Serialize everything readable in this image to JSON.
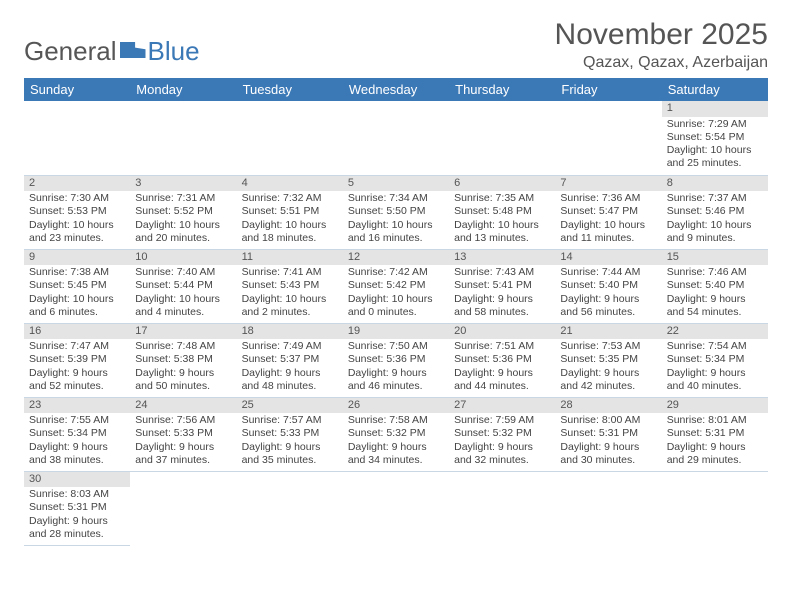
{
  "logo": {
    "part1": "General",
    "part2": "Blue"
  },
  "title": "November 2025",
  "location": "Qazax, Qazax, Azerbaijan",
  "headers": [
    "Sunday",
    "Monday",
    "Tuesday",
    "Wednesday",
    "Thursday",
    "Friday",
    "Saturday"
  ],
  "colors": {
    "header_bg": "#3b78b6",
    "daynum_bg": "#e4e4e4",
    "border": "#c9d6e4"
  },
  "weeks": [
    [
      null,
      null,
      null,
      null,
      null,
      null,
      {
        "n": "1",
        "sr": "Sunrise: 7:29 AM",
        "ss": "Sunset: 5:54 PM",
        "dl": "Daylight: 10 hours and 25 minutes."
      }
    ],
    [
      {
        "n": "2",
        "sr": "Sunrise: 7:30 AM",
        "ss": "Sunset: 5:53 PM",
        "dl": "Daylight: 10 hours and 23 minutes."
      },
      {
        "n": "3",
        "sr": "Sunrise: 7:31 AM",
        "ss": "Sunset: 5:52 PM",
        "dl": "Daylight: 10 hours and 20 minutes."
      },
      {
        "n": "4",
        "sr": "Sunrise: 7:32 AM",
        "ss": "Sunset: 5:51 PM",
        "dl": "Daylight: 10 hours and 18 minutes."
      },
      {
        "n": "5",
        "sr": "Sunrise: 7:34 AM",
        "ss": "Sunset: 5:50 PM",
        "dl": "Daylight: 10 hours and 16 minutes."
      },
      {
        "n": "6",
        "sr": "Sunrise: 7:35 AM",
        "ss": "Sunset: 5:48 PM",
        "dl": "Daylight: 10 hours and 13 minutes."
      },
      {
        "n": "7",
        "sr": "Sunrise: 7:36 AM",
        "ss": "Sunset: 5:47 PM",
        "dl": "Daylight: 10 hours and 11 minutes."
      },
      {
        "n": "8",
        "sr": "Sunrise: 7:37 AM",
        "ss": "Sunset: 5:46 PM",
        "dl": "Daylight: 10 hours and 9 minutes."
      }
    ],
    [
      {
        "n": "9",
        "sr": "Sunrise: 7:38 AM",
        "ss": "Sunset: 5:45 PM",
        "dl": "Daylight: 10 hours and 6 minutes."
      },
      {
        "n": "10",
        "sr": "Sunrise: 7:40 AM",
        "ss": "Sunset: 5:44 PM",
        "dl": "Daylight: 10 hours and 4 minutes."
      },
      {
        "n": "11",
        "sr": "Sunrise: 7:41 AM",
        "ss": "Sunset: 5:43 PM",
        "dl": "Daylight: 10 hours and 2 minutes."
      },
      {
        "n": "12",
        "sr": "Sunrise: 7:42 AM",
        "ss": "Sunset: 5:42 PM",
        "dl": "Daylight: 10 hours and 0 minutes."
      },
      {
        "n": "13",
        "sr": "Sunrise: 7:43 AM",
        "ss": "Sunset: 5:41 PM",
        "dl": "Daylight: 9 hours and 58 minutes."
      },
      {
        "n": "14",
        "sr": "Sunrise: 7:44 AM",
        "ss": "Sunset: 5:40 PM",
        "dl": "Daylight: 9 hours and 56 minutes."
      },
      {
        "n": "15",
        "sr": "Sunrise: 7:46 AM",
        "ss": "Sunset: 5:40 PM",
        "dl": "Daylight: 9 hours and 54 minutes."
      }
    ],
    [
      {
        "n": "16",
        "sr": "Sunrise: 7:47 AM",
        "ss": "Sunset: 5:39 PM",
        "dl": "Daylight: 9 hours and 52 minutes."
      },
      {
        "n": "17",
        "sr": "Sunrise: 7:48 AM",
        "ss": "Sunset: 5:38 PM",
        "dl": "Daylight: 9 hours and 50 minutes."
      },
      {
        "n": "18",
        "sr": "Sunrise: 7:49 AM",
        "ss": "Sunset: 5:37 PM",
        "dl": "Daylight: 9 hours and 48 minutes."
      },
      {
        "n": "19",
        "sr": "Sunrise: 7:50 AM",
        "ss": "Sunset: 5:36 PM",
        "dl": "Daylight: 9 hours and 46 minutes."
      },
      {
        "n": "20",
        "sr": "Sunrise: 7:51 AM",
        "ss": "Sunset: 5:36 PM",
        "dl": "Daylight: 9 hours and 44 minutes."
      },
      {
        "n": "21",
        "sr": "Sunrise: 7:53 AM",
        "ss": "Sunset: 5:35 PM",
        "dl": "Daylight: 9 hours and 42 minutes."
      },
      {
        "n": "22",
        "sr": "Sunrise: 7:54 AM",
        "ss": "Sunset: 5:34 PM",
        "dl": "Daylight: 9 hours and 40 minutes."
      }
    ],
    [
      {
        "n": "23",
        "sr": "Sunrise: 7:55 AM",
        "ss": "Sunset: 5:34 PM",
        "dl": "Daylight: 9 hours and 38 minutes."
      },
      {
        "n": "24",
        "sr": "Sunrise: 7:56 AM",
        "ss": "Sunset: 5:33 PM",
        "dl": "Daylight: 9 hours and 37 minutes."
      },
      {
        "n": "25",
        "sr": "Sunrise: 7:57 AM",
        "ss": "Sunset: 5:33 PM",
        "dl": "Daylight: 9 hours and 35 minutes."
      },
      {
        "n": "26",
        "sr": "Sunrise: 7:58 AM",
        "ss": "Sunset: 5:32 PM",
        "dl": "Daylight: 9 hours and 34 minutes."
      },
      {
        "n": "27",
        "sr": "Sunrise: 7:59 AM",
        "ss": "Sunset: 5:32 PM",
        "dl": "Daylight: 9 hours and 32 minutes."
      },
      {
        "n": "28",
        "sr": "Sunrise: 8:00 AM",
        "ss": "Sunset: 5:31 PM",
        "dl": "Daylight: 9 hours and 30 minutes."
      },
      {
        "n": "29",
        "sr": "Sunrise: 8:01 AM",
        "ss": "Sunset: 5:31 PM",
        "dl": "Daylight: 9 hours and 29 minutes."
      }
    ],
    [
      {
        "n": "30",
        "sr": "Sunrise: 8:03 AM",
        "ss": "Sunset: 5:31 PM",
        "dl": "Daylight: 9 hours and 28 minutes."
      },
      null,
      null,
      null,
      null,
      null,
      null
    ]
  ]
}
